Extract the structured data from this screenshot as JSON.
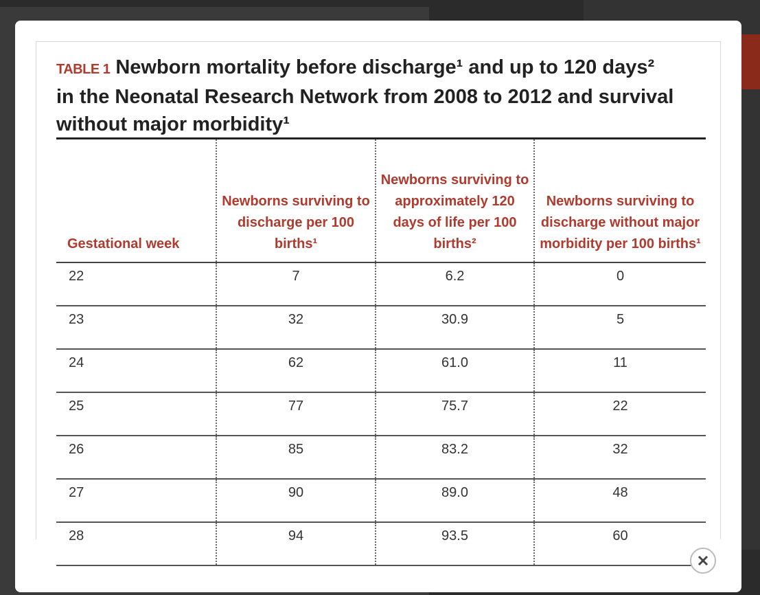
{
  "table": {
    "label": "TABLE 1",
    "title": "Newborn mortality before discharge¹ and up to 120 days² in the Neonatal Research Network from 2008 to 2012 and survival without major morbidity¹",
    "columns": [
      "Gestational week",
      "Newborns surviving to discharge per 100 births¹",
      "Newborns surviving to approximately 120 days of life per 100 births²",
      "Newborns surviving to discharge without major morbidity per 100 births¹"
    ],
    "rows": [
      [
        "22",
        "7",
        "6.2",
        "0"
      ],
      [
        "23",
        "32",
        "30.9",
        "5"
      ],
      [
        "24",
        "62",
        "61.0",
        "11"
      ],
      [
        "25",
        "77",
        "75.7",
        "22"
      ],
      [
        "26",
        "85",
        "83.2",
        "32"
      ],
      [
        "27",
        "90",
        "89.0",
        "48"
      ],
      [
        "28",
        "94",
        "93.5",
        "60"
      ]
    ]
  }
}
